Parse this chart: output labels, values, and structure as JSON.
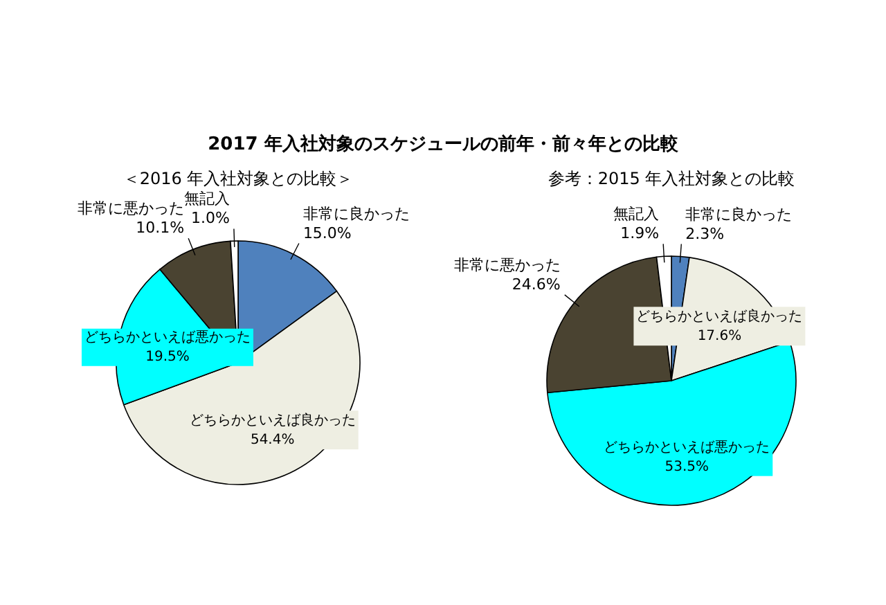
{
  "chart_data": [
    {
      "type": "pie",
      "title": "2017 年入社対象のスケジュールの前年・前々年との比較",
      "subtitle": "＜2016 年入社対象との比較＞",
      "categories": [
        "非常に良かった",
        "どちらかといえば良かった",
        "どちらかといえば悪かった",
        "非常に悪かった",
        "無記入"
      ],
      "values": [
        15.0,
        54.4,
        19.5,
        10.1,
        1.0
      ],
      "value_labels": [
        "15.0%",
        "54.4%",
        "19.5%",
        "10.1%",
        "1.0%"
      ],
      "colors": [
        "#4f81bd",
        "#eeeee2",
        "#00ffff",
        "#4a4331",
        "#ffffff"
      ]
    },
    {
      "type": "pie",
      "subtitle": "参考：2015 年入社対象との比較",
      "categories": [
        "非常に良かった",
        "どちらかといえば良かった",
        "どちらかといえば悪かった",
        "非常に悪かった",
        "無記入"
      ],
      "values": [
        2.3,
        17.6,
        53.5,
        24.6,
        1.9
      ],
      "value_labels": [
        "2.3%",
        "17.6%",
        "53.5%",
        "24.6%",
        "1.9%"
      ],
      "colors": [
        "#4f81bd",
        "#eeeee2",
        "#00ffff",
        "#4a4331",
        "#ffffff"
      ]
    }
  ]
}
